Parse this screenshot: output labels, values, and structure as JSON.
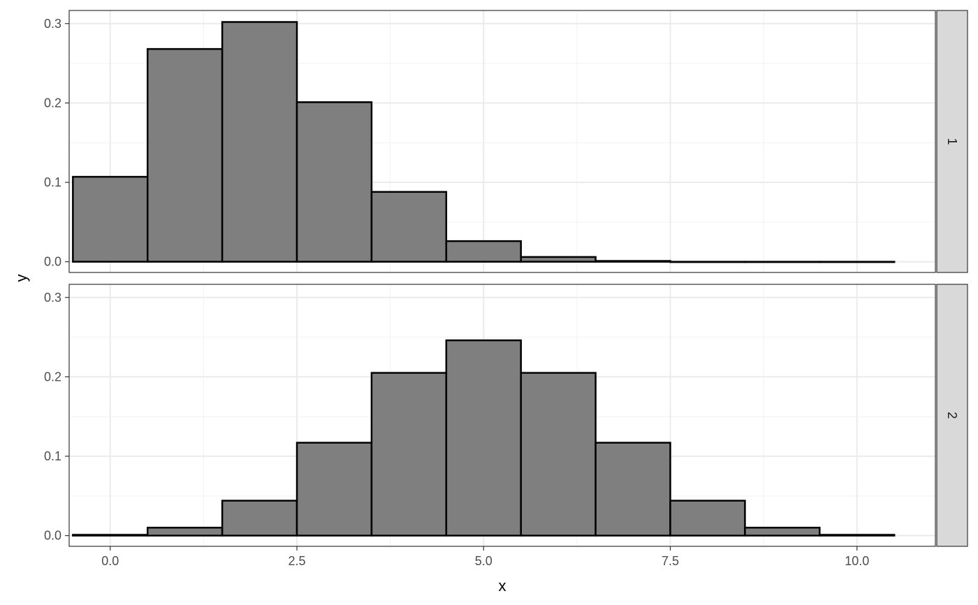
{
  "chart_data": {
    "type": "bar",
    "xlabel": "x",
    "ylabel": "y",
    "xlim": [
      -0.55,
      11.05
    ],
    "ylim": [
      -0.0135,
      0.3165
    ],
    "x_ticks": [
      0.0,
      2.5,
      5.0,
      7.5,
      10.0
    ],
    "x_tick_labels": [
      "0.0",
      "2.5",
      "5.0",
      "7.5",
      "10.0"
    ],
    "y_ticks": [
      0.0,
      0.1,
      0.2,
      0.3
    ],
    "y_tick_labels": [
      "0.0",
      "0.1",
      "0.2",
      "0.3"
    ],
    "grid": true,
    "bar_fill": "#7f7f7f",
    "bar_stroke": "#000000",
    "panel_border": "#333333",
    "strip_fill": "#d9d9d9",
    "categories": [
      0,
      1,
      2,
      3,
      4,
      5,
      6,
      7,
      8,
      9,
      10
    ],
    "panels": [
      {
        "strip_label": "1",
        "values": [
          0.107,
          0.268,
          0.302,
          0.201,
          0.088,
          0.026,
          0.006,
          0.001,
          0.0,
          0.0,
          0.0
        ]
      },
      {
        "strip_label": "2",
        "values": [
          0.001,
          0.01,
          0.044,
          0.117,
          0.205,
          0.246,
          0.205,
          0.117,
          0.044,
          0.01,
          0.001
        ]
      }
    ]
  }
}
